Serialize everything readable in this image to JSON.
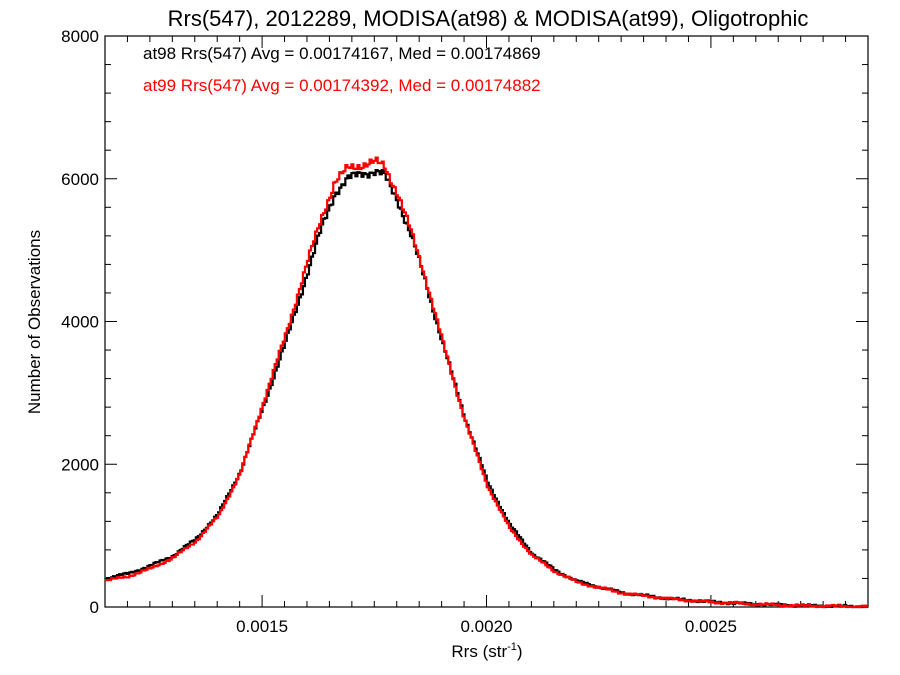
{
  "chart_data": {
    "type": "line",
    "title": "Rrs(547), 2012289, MODISA(at98) & MODISA(at99), Oligotrophic",
    "xlabel": "Rrs (str",
    "xlabel_sup": "-1",
    "xlabel_close": ")",
    "ylabel": "Number of Observations",
    "xlim": [
      0.00115,
      0.00285
    ],
    "ylim": [
      0,
      8000
    ],
    "x_ticks": [
      0.0015,
      0.002,
      0.0025
    ],
    "x_tick_labels": [
      "0.0015",
      "0.0020",
      "0.0025"
    ],
    "y_ticks": [
      0,
      2000,
      4000,
      6000,
      8000
    ],
    "y_tick_labels": [
      "0",
      "2000",
      "4000",
      "6000",
      "8000"
    ],
    "step": true,
    "legend_placement": "top-left",
    "series": [
      {
        "name": "at98 Rrs(547) Avg = 0.00174167, Med = 0.00174869",
        "color": "#000000",
        "x": [
          0.00115,
          0.0012,
          0.00125,
          0.0013,
          0.00135,
          0.0014,
          0.00145,
          0.0015,
          0.00155,
          0.0016,
          0.00163,
          0.00166,
          0.00169,
          0.00172,
          0.00175,
          0.00177,
          0.0018,
          0.00183,
          0.00186,
          0.0019,
          0.00195,
          0.002,
          0.00205,
          0.0021,
          0.00215,
          0.0022,
          0.0023,
          0.0024,
          0.0025,
          0.0026,
          0.0027,
          0.0028,
          0.00285
        ],
        "values": [
          400,
          470,
          580,
          720,
          950,
          1300,
          1900,
          2800,
          3700,
          4700,
          5300,
          5800,
          6000,
          6080,
          6100,
          6050,
          5700,
          5200,
          4600,
          3700,
          2650,
          1750,
          1150,
          750,
          520,
          360,
          200,
          120,
          70,
          40,
          20,
          10,
          5
        ]
      },
      {
        "name": "at99 Rrs(547) Avg = 0.00174392, Med = 0.00174882",
        "color": "#ff0000",
        "x": [
          0.00115,
          0.0012,
          0.00125,
          0.0013,
          0.00135,
          0.0014,
          0.00145,
          0.0015,
          0.00155,
          0.0016,
          0.00163,
          0.00166,
          0.00169,
          0.00172,
          0.00175,
          0.00177,
          0.0018,
          0.00183,
          0.00186,
          0.0019,
          0.00195,
          0.002,
          0.00205,
          0.0021,
          0.00215,
          0.0022,
          0.0023,
          0.0024,
          0.0025,
          0.0026,
          0.0027,
          0.0028,
          0.00285
        ],
        "values": [
          370,
          430,
          540,
          690,
          920,
          1270,
          1880,
          2850,
          3800,
          4850,
          5450,
          5950,
          6150,
          6200,
          6230,
          6180,
          5800,
          5250,
          4650,
          3720,
          2620,
          1700,
          1100,
          720,
          500,
          345,
          195,
          118,
          68,
          38,
          18,
          9,
          4
        ]
      }
    ]
  }
}
